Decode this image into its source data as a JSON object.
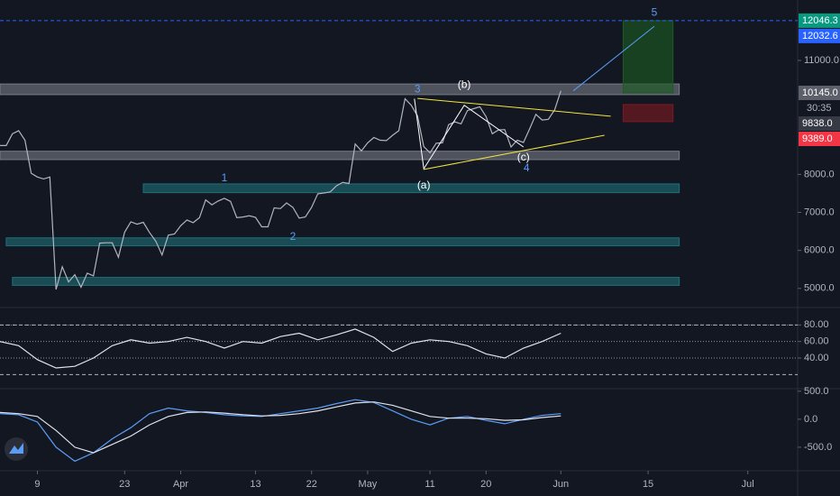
{
  "chart_data": [
    {
      "type": "line",
      "color": "#b2b5be",
      "xlim": [
        63,
        191
      ],
      "xticks": [
        {
          "value": 69,
          "label": "9"
        },
        {
          "value": 83,
          "label": "23"
        },
        {
          "value": 92,
          "label": "Apr"
        },
        {
          "value": 104,
          "label": "13"
        },
        {
          "value": 113,
          "label": "22"
        },
        {
          "value": 122,
          "label": "May"
        },
        {
          "value": 132,
          "label": "11"
        },
        {
          "value": 141,
          "label": "20"
        },
        {
          "value": 153,
          "label": "Jun"
        },
        {
          "value": 167,
          "label": "15"
        },
        {
          "value": 183,
          "label": "Jul"
        }
      ],
      "ylim": [
        4520,
        12590
      ],
      "yticks": [
        {
          "value": 5000,
          "label": "5000.0"
        },
        {
          "value": 6000,
          "label": "6000.0"
        },
        {
          "value": 7000,
          "label": "7000.0"
        },
        {
          "value": 8000,
          "label": "8000.0"
        },
        {
          "value": 11000,
          "label": "11000.0"
        }
      ],
      "x": [
        63,
        64,
        65,
        66,
        67,
        68,
        69,
        70,
        71,
        72,
        73,
        74,
        75,
        76,
        77,
        78,
        79,
        80,
        81,
        82,
        83,
        84,
        85,
        86,
        87,
        88,
        89,
        90,
        91,
        92,
        93,
        94,
        95,
        96,
        97,
        98,
        99,
        100,
        101,
        102,
        103,
        104,
        105,
        106,
        107,
        108,
        109,
        110,
        111,
        112,
        113,
        114,
        115,
        116,
        117,
        118,
        119,
        120,
        121,
        122,
        123,
        124,
        125,
        126,
        127,
        128,
        129,
        130,
        131,
        132,
        133,
        134,
        135,
        136,
        137,
        138,
        139,
        140,
        141,
        142,
        143,
        144,
        145,
        146,
        147,
        148,
        149,
        150,
        151,
        152,
        153
      ],
      "values": [
        8760,
        8760,
        9070,
        9150,
        8900,
        8030,
        7930,
        7880,
        7930,
        4970,
        5570,
        5170,
        5360,
        5030,
        5400,
        5330,
        6190,
        6200,
        6200,
        5820,
        6480,
        6750,
        6690,
        6740,
        6470,
        6240,
        5880,
        6400,
        6430,
        6650,
        6800,
        6730,
        6860,
        7330,
        7200,
        7300,
        7370,
        7290,
        6860,
        6880,
        6910,
        6870,
        6620,
        6620,
        7120,
        7100,
        7250,
        7130,
        6850,
        6880,
        7130,
        7490,
        7510,
        7540,
        7700,
        7790,
        7760,
        8800,
        8620,
        8830,
        8970,
        8900,
        8890,
        9030,
        9150,
        9990,
        9820,
        9540,
        8730,
        8570,
        8820,
        8830,
        9310,
        9380,
        9330,
        9680,
        9730,
        9780,
        9520,
        9070,
        9170,
        9180,
        8720,
        8900,
        8840,
        9200,
        9580,
        9430,
        9450,
        9700,
        10200
      ],
      "zones": [
        {
          "x": [
            63,
            172
          ],
          "y": [
            10100,
            10380
          ],
          "color": "#787b86"
        },
        {
          "x": [
            63,
            172
          ],
          "y": [
            8390,
            8610
          ],
          "color": "#787b86"
        },
        {
          "x": [
            86,
            172
          ],
          "y": [
            7520,
            7750
          ],
          "color": "#1f6f78"
        },
        {
          "x": [
            64,
            172
          ],
          "y": [
            6120,
            6330
          ],
          "color": "#1f6f78"
        },
        {
          "x": [
            65,
            172
          ],
          "y": [
            5080,
            5290
          ],
          "color": "#1f6f78"
        },
        {
          "x": [
            163,
            171
          ],
          "y": [
            10145,
            12046.3
          ],
          "color": "#1b5e20"
        },
        {
          "x": [
            163,
            171
          ],
          "y": [
            9389,
            9838
          ],
          "color": "#801922"
        }
      ],
      "levels": [
        {
          "value": 12046.3,
          "color": "#2962ff"
        }
      ],
      "lines": [
        {
          "x": [
            130,
            161
          ],
          "y": [
            10000,
            9530
          ],
          "color": "#f5e63a"
        },
        {
          "x": [
            131,
            160
          ],
          "y": [
            8130,
            9030
          ],
          "color": "#f5e63a"
        },
        {
          "x": [
            129.5,
            131,
            137.5,
            147
          ],
          "y": [
            9990,
            8150,
            9820,
            8720
          ],
          "color": "#ffffff"
        },
        {
          "x": [
            155,
            168
          ],
          "y": [
            10200,
            11900
          ],
          "color": "#5b9cf6"
        }
      ],
      "annotations": [
        {
          "text": "5",
          "x": 168,
          "y": 12250,
          "color": "#5b9cf6"
        },
        {
          "text": "3",
          "x": 130,
          "y": 10230,
          "color": "#5b9cf6"
        },
        {
          "text": "(b)",
          "x": 137.5,
          "y": 10350,
          "color": "#ffffff"
        },
        {
          "text": "(a)",
          "x": 131,
          "y": 7700,
          "color": "#ffffff"
        },
        {
          "text": "(c)",
          "x": 147,
          "y": 8440,
          "color": "#ffffff"
        },
        {
          "text": "4",
          "x": 147.5,
          "y": 8150,
          "color": "#5b9cf6"
        },
        {
          "text": "1",
          "x": 99,
          "y": 7900,
          "color": "#5b9cf6"
        },
        {
          "text": "2",
          "x": 110,
          "y": 6350,
          "color": "#5b9cf6"
        }
      ],
      "price_labels": [
        {
          "value": 12046.3,
          "label": "12046.3",
          "color": "#089981"
        },
        {
          "value": 12032.6,
          "label": "12032.6",
          "color": "#2962ff"
        },
        {
          "value": 10145,
          "label": "10145.0",
          "color": "#5d606b",
          "countdown": "30:35"
        },
        {
          "value": 9838,
          "label": "9838.0",
          "color": "#363a45"
        },
        {
          "value": 9389,
          "label": "9389.0",
          "color": "#f23645"
        }
      ]
    },
    {
      "type": "line",
      "color": "#e0e3eb",
      "grid": true,
      "xlim": [
        63,
        191
      ],
      "ylim": [
        4,
        100
      ],
      "yticks": [
        {
          "value": 80,
          "label": "80.00"
        },
        {
          "value": 60,
          "label": "60.00"
        },
        {
          "value": 40,
          "label": "40.00"
        }
      ],
      "levels": [
        {
          "value": 80,
          "color": "#b2b5be"
        },
        {
          "value": 20,
          "color": "#b2b5be"
        }
      ],
      "x": [
        63,
        66,
        69,
        72,
        75,
        78,
        81,
        84,
        87,
        90,
        93,
        96,
        99,
        102,
        105,
        108,
        111,
        114,
        117,
        120,
        123,
        126,
        129,
        132,
        135,
        138,
        141,
        144,
        147,
        150,
        153
      ],
      "values": [
        60,
        55,
        38,
        28,
        30,
        40,
        55,
        62,
        58,
        60,
        65,
        60,
        52,
        60,
        58,
        66,
        70,
        62,
        68,
        75,
        65,
        48,
        58,
        62,
        60,
        55,
        45,
        40,
        52,
        60,
        70
      ]
    },
    {
      "type": "line",
      "xlim": [
        63,
        191
      ],
      "ylim": [
        -920,
        530
      ],
      "yticks": [
        {
          "value": 500,
          "label": "500.0"
        },
        {
          "value": 0,
          "label": "0.0"
        },
        {
          "value": -500,
          "label": "-500.0"
        }
      ],
      "x": [
        63,
        66,
        69,
        72,
        75,
        78,
        81,
        84,
        87,
        90,
        93,
        96,
        99,
        102,
        105,
        108,
        111,
        114,
        117,
        120,
        123,
        126,
        129,
        132,
        135,
        138,
        141,
        144,
        147,
        150,
        153
      ],
      "series": [
        {
          "color": "#5b9cf6",
          "values": [
            100,
            80,
            -50,
            -500,
            -750,
            -600,
            -350,
            -150,
            100,
            200,
            150,
            120,
            80,
            60,
            50,
            100,
            150,
            200,
            280,
            350,
            300,
            150,
            0,
            -100,
            20,
            50,
            -20,
            -80,
            0,
            70,
            100
          ]
        },
        {
          "color": "#e0e3eb",
          "values": [
            120,
            100,
            50,
            -200,
            -500,
            -600,
            -450,
            -300,
            -100,
            50,
            120,
            130,
            110,
            80,
            60,
            70,
            100,
            150,
            220,
            290,
            310,
            250,
            150,
            50,
            20,
            20,
            10,
            -20,
            -10,
            30,
            60
          ]
        }
      ]
    }
  ]
}
